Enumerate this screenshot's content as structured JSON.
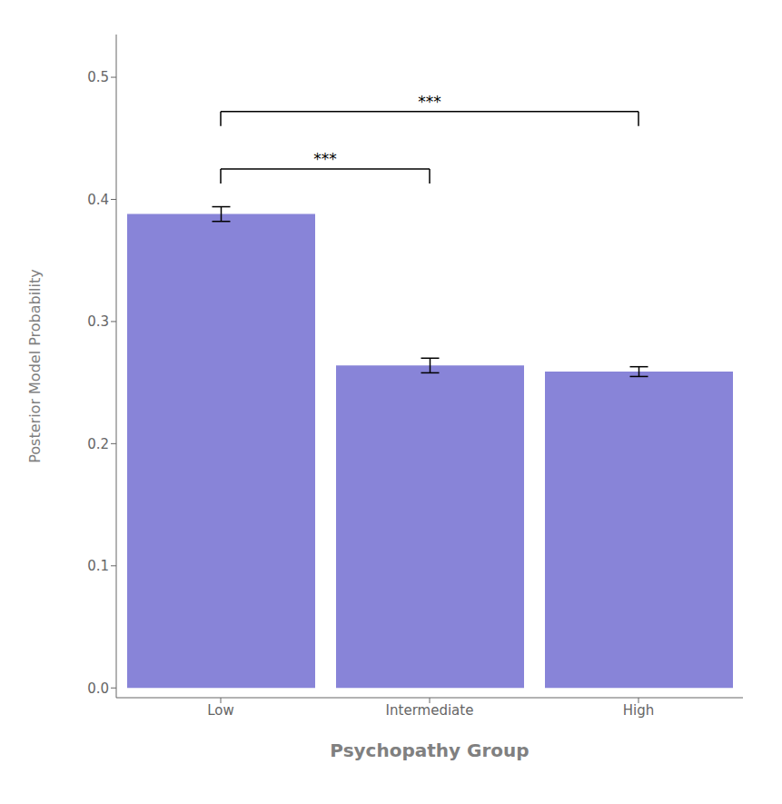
{
  "chart_data": {
    "type": "bar",
    "categories": [
      "Low",
      "Intermediate",
      "High"
    ],
    "values": [
      0.388,
      0.264,
      0.259
    ],
    "error_low": [
      0.006,
      0.006,
      0.004
    ],
    "error_high": [
      0.006,
      0.006,
      0.004
    ],
    "color": "#8884d8",
    "xlabel": "Psychopathy Group",
    "ylabel": "Posterior Model Probability",
    "ylim": [
      -0.008,
      0.535
    ],
    "yticks": [
      {
        "value": 0,
        "label": "0.0"
      },
      0.1,
      0.2,
      0.3,
      0.4,
      0.5
    ],
    "grid": false,
    "significance_brackets": [
      {
        "from": "Low",
        "to": "Intermediate",
        "y": 0.425,
        "text": "***"
      },
      {
        "from": "Low",
        "to": "High",
        "y": 0.472,
        "text": "***"
      }
    ]
  }
}
